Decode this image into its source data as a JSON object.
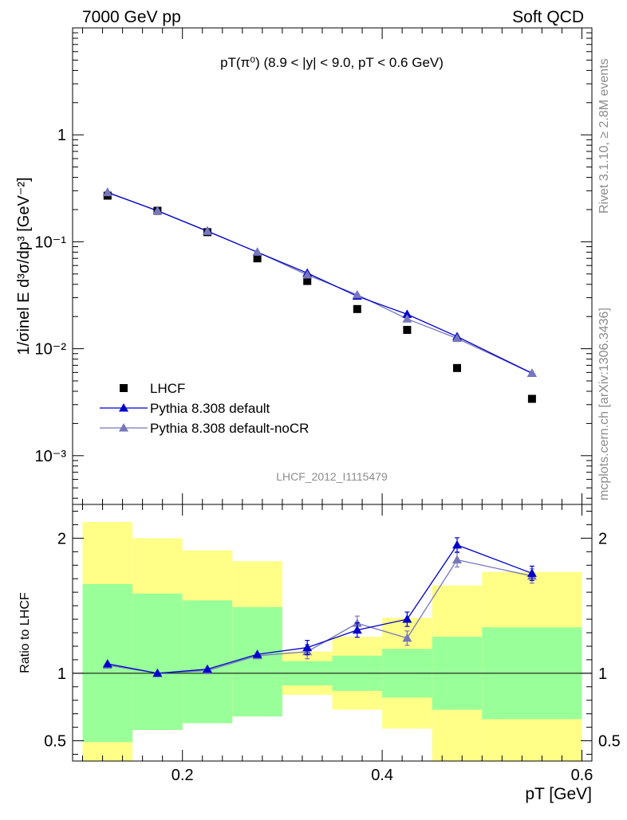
{
  "header": {
    "left": "7000 GeV pp",
    "right": "Soft QCD"
  },
  "side": {
    "rivet": "Rivet 3.1.10, ≥ 2.8M events",
    "mcplots": "mcplots.cern.ch [arXiv:1306.3436]"
  },
  "watermark": "LHCF_2012_I1115479",
  "colors": {
    "pythia_default": "#0000cc",
    "pythia_nocr": "#7777bb",
    "band_inner": "#99ff99",
    "band_outer": "#ffff88",
    "data": "#000000"
  },
  "chart_data": [
    {
      "type": "scatter",
      "title": "pT(π⁰) (8.9 < |y| < 9.0, pT < 0.6 GeV)",
      "ylabel": "1/σinel E d³σ/dp³ [GeV⁻²]",
      "yscale": "log",
      "ylim": [
        0.00035,
        10
      ],
      "xlim": [
        0.09,
        0.61
      ],
      "yticks": [
        "1",
        "10⁻¹",
        "10⁻²",
        "10⁻³"
      ],
      "legend_position": "bottom-left",
      "series": [
        {
          "name": "LHCF",
          "marker": "square",
          "x": [
            0.125,
            0.175,
            0.225,
            0.275,
            0.325,
            0.375,
            0.425,
            0.475,
            0.55
          ],
          "y": [
            0.27,
            0.195,
            0.123,
            0.07,
            0.043,
            0.0235,
            0.015,
            0.0066,
            0.0034
          ]
        },
        {
          "name": "Pythia 8.308 default",
          "marker": "triangle",
          "x": [
            0.125,
            0.175,
            0.225,
            0.275,
            0.325,
            0.375,
            0.425,
            0.475,
            0.55
          ],
          "y": [
            0.29,
            0.195,
            0.126,
            0.08,
            0.051,
            0.031,
            0.021,
            0.013,
            0.0059
          ]
        },
        {
          "name": "Pythia 8.308 default-noCR",
          "marker": "triangle",
          "x": [
            0.125,
            0.175,
            0.225,
            0.275,
            0.325,
            0.375,
            0.425,
            0.475,
            0.55
          ],
          "y": [
            0.288,
            0.195,
            0.125,
            0.08,
            0.049,
            0.032,
            0.019,
            0.0125,
            0.0059
          ]
        }
      ]
    },
    {
      "type": "line",
      "ylabel": "Ratio to LHCF",
      "xlabel": "pT [GeV]",
      "xlim": [
        0.09,
        0.61
      ],
      "ylim": [
        0.35,
        2.25
      ],
      "xticks": [
        0.2,
        0.4,
        0.6
      ],
      "xtick_labels": [
        "0.2",
        "0.4",
        "0.6"
      ],
      "yticks": [
        0.5,
        1,
        2
      ],
      "ytick_labels": [
        "0.5",
        "1",
        "2"
      ],
      "bands": [
        {
          "xmin": 0.1,
          "xmax": 0.15,
          "inner": [
            0.49,
            1.66
          ],
          "outer": [
            0.35,
            2.12
          ]
        },
        {
          "xmin": 0.15,
          "xmax": 0.2,
          "inner": [
            0.58,
            1.59
          ],
          "outer": [
            0.58,
            2.0
          ]
        },
        {
          "xmin": 0.2,
          "xmax": 0.25,
          "inner": [
            0.63,
            1.54
          ],
          "outer": [
            0.63,
            1.91
          ]
        },
        {
          "xmin": 0.25,
          "xmax": 0.3,
          "inner": [
            0.68,
            1.49
          ],
          "outer": [
            0.68,
            1.83
          ]
        },
        {
          "xmin": 0.3,
          "xmax": 0.35,
          "inner": [
            0.91,
            1.09
          ],
          "outer": [
            0.84,
            1.16
          ]
        },
        {
          "xmin": 0.35,
          "xmax": 0.4,
          "inner": [
            0.87,
            1.13
          ],
          "outer": [
            0.73,
            1.27
          ]
        },
        {
          "xmin": 0.4,
          "xmax": 0.45,
          "inner": [
            0.82,
            1.18
          ],
          "outer": [
            0.59,
            1.41
          ]
        },
        {
          "xmin": 0.45,
          "xmax": 0.5,
          "inner": [
            0.73,
            1.27
          ],
          "outer": [
            0.35,
            1.65
          ]
        },
        {
          "xmin": 0.5,
          "xmax": 0.6,
          "inner": [
            0.66,
            1.34
          ],
          "outer": [
            0.35,
            1.75
          ]
        }
      ],
      "series": [
        {
          "name": "Pythia 8.308 default",
          "x": [
            0.125,
            0.175,
            0.225,
            0.275,
            0.325,
            0.375,
            0.425,
            0.475,
            0.55
          ],
          "y": [
            1.07,
            1.0,
            1.03,
            1.14,
            1.19,
            1.32,
            1.4,
            1.95,
            1.74
          ]
        },
        {
          "name": "Pythia 8.308 default-noCR",
          "x": [
            0.125,
            0.175,
            0.225,
            0.275,
            0.325,
            0.375,
            0.425,
            0.475,
            0.55
          ],
          "y": [
            1.06,
            1.0,
            1.02,
            1.13,
            1.16,
            1.37,
            1.26,
            1.84,
            1.72
          ]
        }
      ]
    }
  ]
}
